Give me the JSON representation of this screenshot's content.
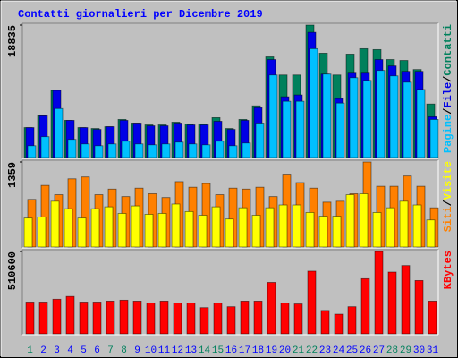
{
  "chart_data": [
    {
      "type": "bar",
      "title": "Contatti giornalieri per Dicembre 2019",
      "legend_separator": "/",
      "ylim": [
        0,
        18835
      ],
      "yticks": [
        18835
      ],
      "series": [
        {
          "name": "Contatti",
          "color": "#00805c",
          "values": [
            4257,
            5934,
            9546,
            5289,
            4257,
            4128,
            4386,
            5418,
            4902,
            4644,
            4644,
            5031,
            4773,
            4773,
            5676,
            4128,
            5418,
            7353,
            14319,
            11739,
            11739,
            18835,
            14835,
            11739,
            14706,
            15480,
            15351,
            13932,
            13803,
            12513,
            7611
          ]
        },
        {
          "name": "File",
          "color": "#0000e6",
          "values": [
            4257,
            5934,
            9546,
            5289,
            4257,
            3999,
            4386,
            5289,
            4902,
            4515,
            4515,
            4902,
            4644,
            4644,
            5160,
            3999,
            5289,
            7095,
            13932,
            8643,
            8901,
            17802,
            11868,
            8385,
            11997,
            11997,
            13932,
            13029,
            12255,
            12255,
            5805
          ]
        },
        {
          "name": "Pagine",
          "color": "#00c0ff",
          "values": [
            1677,
            2967,
            6966,
            2580,
            1935,
            1677,
            1935,
            2322,
            1935,
            1806,
            1935,
            2193,
            1935,
            1806,
            2322,
            1677,
            2064,
            4902,
            11739,
            7998,
            7998,
            15480,
            11868,
            7740,
            11352,
            10965,
            12384,
            11610,
            10707,
            9675,
            5418
          ]
        }
      ]
    },
    {
      "type": "bar",
      "legend_separator": "/",
      "ylim": [
        0,
        1359
      ],
      "yticks": [
        1359
      ],
      "series": [
        {
          "name": "Siti",
          "color": "#ff8000",
          "values": [
            761,
            985,
            836,
            1090,
            1120,
            836,
            926,
            806,
            941,
            851,
            791,
            1045,
            956,
            1015,
            836,
            941,
            926,
            956,
            806,
            1165,
            1030,
            941,
            717,
            732,
            851,
            1359,
            971,
            971,
            1135,
            971,
            627
          ]
        },
        {
          "name": "Visite",
          "color": "#ffff00",
          "values": [
            463,
            478,
            732,
            612,
            463,
            612,
            642,
            537,
            657,
            523,
            537,
            687,
            567,
            508,
            642,
            448,
            627,
            508,
            627,
            672,
            672,
            552,
            493,
            493,
            836,
            851,
            552,
            627,
            732,
            672,
            433
          ]
        }
      ]
    },
    {
      "type": "bar",
      "ylim": [
        0,
        510600
      ],
      "yticks": [
        510600
      ],
      "categories": [
        "1",
        "2",
        "3",
        "4",
        "5",
        "6",
        "7",
        "8",
        "9",
        "10",
        "11",
        "12",
        "13",
        "14",
        "15",
        "16",
        "17",
        "18",
        "19",
        "20",
        "21",
        "22",
        "23",
        "24",
        "25",
        "26",
        "27",
        "28",
        "29",
        "30",
        "31"
      ],
      "category_colors": [
        "#00805c",
        "#0000ff",
        "#0000ff",
        "#0000ff",
        "#0000ff",
        "#0000ff",
        "#00805c",
        "#00805c",
        "#0000ff",
        "#0000ff",
        "#0000ff",
        "#0000ff",
        "#0000ff",
        "#00805c",
        "#00805c",
        "#0000ff",
        "#0000ff",
        "#0000ff",
        "#0000ff",
        "#0000ff",
        "#00805c",
        "#00805c",
        "#0000ff",
        "#0000ff",
        "#0000ff",
        "#0000ff",
        "#0000ff",
        "#00805c",
        "#00805c",
        "#0000ff",
        "#0000ff"
      ],
      "series": [
        {
          "name": "KBytes",
          "color": "#ff0000",
          "values": [
            197268,
            197268,
            214674,
            232080,
            197268,
            197268,
            203070,
            208872,
            203070,
            191466,
            203070,
            191466,
            191466,
            162456,
            191466,
            168258,
            203070,
            203070,
            319110,
            191466,
            185664,
            388734,
            145050,
            121842,
            168258,
            342318,
            510600,
            382932,
            423546,
            330714,
            203070
          ]
        }
      ]
    }
  ]
}
